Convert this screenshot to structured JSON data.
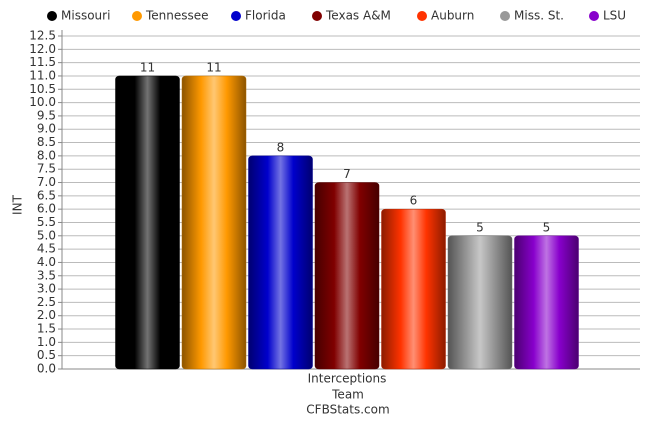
{
  "chart_data": {
    "type": "bar",
    "categories": [
      "Interceptions"
    ],
    "series": [
      {
        "name": "Missouri",
        "color": "#000000",
        "values": [
          11
        ]
      },
      {
        "name": "Tennessee",
        "color": "#ff9900",
        "values": [
          11
        ]
      },
      {
        "name": "Florida",
        "color": "#0000cc",
        "values": [
          8
        ]
      },
      {
        "name": "Texas A&M",
        "color": "#800000",
        "values": [
          7
        ]
      },
      {
        "name": "Auburn",
        "color": "#ff3300",
        "values": [
          6
        ]
      },
      {
        "name": "Miss. St.",
        "color": "#999999",
        "values": [
          5
        ]
      },
      {
        "name": "LSU",
        "color": "#8800cc",
        "values": [
          5
        ]
      }
    ],
    "x_label": "Team",
    "y_label": "INT",
    "caption": "CFBStats.com",
    "ylim": [
      0,
      12.5
    ],
    "yticks": [
      {
        "value": 0,
        "label": "0.0"
      },
      0.5,
      {
        "value": 1,
        "label": "1.0"
      },
      1.5,
      {
        "value": 2,
        "label": "2.0"
      },
      2.5,
      {
        "value": 3,
        "label": "3.0"
      },
      3.5,
      {
        "value": 4,
        "label": "4.0"
      },
      4.5,
      {
        "value": 5,
        "label": "5.0"
      },
      5.5,
      {
        "value": 6,
        "label": "6.0"
      },
      6.5,
      {
        "value": 7,
        "label": "7.0"
      },
      7.5,
      {
        "value": 8,
        "label": "8.0"
      },
      8.5,
      {
        "value": 9,
        "label": "9.0"
      },
      9.5,
      {
        "value": 10,
        "label": "10.0"
      },
      10.5,
      {
        "value": 11,
        "label": "11.0"
      },
      11.5,
      {
        "value": 12,
        "label": "12.0"
      },
      12.5
    ],
    "grid": true,
    "legend": "top"
  }
}
